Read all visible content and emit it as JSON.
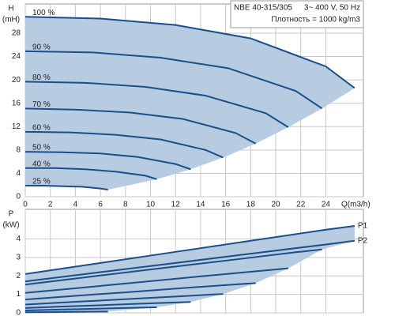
{
  "chart_data": [
    {
      "type": "line",
      "header": [
        "NBE 40-315/305",
        "3~ 400 V, 50 Hz",
        "Плотность = 1000 kg/m3"
      ],
      "y_label": [
        "H",
        "(mH)"
      ],
      "x_label": "Q(m3/h)",
      "xlim": [
        0,
        27
      ],
      "ylim": [
        0,
        33
      ],
      "xticks": [
        0,
        2,
        4,
        6,
        8,
        10,
        12,
        14,
        16,
        18,
        20,
        22,
        24
      ],
      "yticks": [
        0,
        4,
        8,
        12,
        16,
        20,
        24,
        28
      ],
      "grid": true,
      "color": "#1a4f8a",
      "shade": "#b7cbe1",
      "series": [
        {
          "name": "100 %",
          "x": [
            0,
            6,
            12,
            18,
            24,
            26.3
          ],
          "values": [
            30.8,
            30.5,
            29.4,
            27.1,
            22.3,
            18.6
          ]
        },
        {
          "name": "90 %",
          "x": [
            0,
            5.4,
            10.8,
            16.2,
            21.6,
            23.7
          ],
          "values": [
            24.9,
            24.7,
            23.8,
            22.0,
            18.1,
            15.1
          ]
        },
        {
          "name": "80 %",
          "x": [
            0,
            4.8,
            9.6,
            14.4,
            19.2,
            21
          ],
          "values": [
            19.7,
            19.5,
            18.8,
            17.3,
            14.3,
            11.9
          ]
        },
        {
          "name": "70 %",
          "x": [
            0,
            4.2,
            8.4,
            12.6,
            16.8,
            18.4
          ],
          "values": [
            15.1,
            14.9,
            14.4,
            13.3,
            10.9,
            9.1
          ]
        },
        {
          "name": "60 %",
          "x": [
            0,
            3.6,
            7.2,
            10.8,
            14.4,
            15.8
          ],
          "values": [
            11.1,
            11.0,
            10.6,
            9.8,
            8.0,
            6.7
          ]
        },
        {
          "name": "50 %",
          "x": [
            0,
            3,
            6,
            9,
            12,
            13.2
          ],
          "values": [
            7.7,
            7.6,
            7.4,
            6.8,
            5.6,
            4.7
          ]
        },
        {
          "name": "40 %",
          "x": [
            0,
            2.4,
            4.8,
            7.2,
            9.6,
            10.5
          ],
          "values": [
            4.9,
            4.9,
            4.7,
            4.3,
            3.6,
            3.0
          ]
        },
        {
          "name": "25 %",
          "x": [
            0,
            1.5,
            3,
            4.5,
            6,
            6.6
          ],
          "values": [
            1.9,
            1.9,
            1.8,
            1.7,
            1.4,
            1.2
          ]
        }
      ]
    },
    {
      "type": "line",
      "y_label": [
        "P",
        "(kW)"
      ],
      "xlim": [
        0,
        27
      ],
      "ylim": [
        0,
        5.6
      ],
      "xticks": [
        0,
        2,
        4,
        6,
        8,
        10,
        12,
        14,
        16,
        18,
        20,
        22,
        24
      ],
      "yticks": [
        0,
        1,
        2,
        3,
        4
      ],
      "grid": true,
      "color": "#1a4f8a",
      "shade": "#b7cbe1",
      "series": [
        {
          "name": "P1",
          "x": [
            0,
            6,
            12,
            18,
            24,
            26.3
          ],
          "values": [
            2.1,
            2.7,
            3.3,
            3.9,
            4.5,
            4.7
          ]
        },
        {
          "name": "P2",
          "x": [
            0,
            6,
            12,
            18,
            24,
            26.3
          ],
          "values": [
            1.7,
            2.2,
            2.7,
            3.2,
            3.7,
            3.9
          ]
        },
        {
          "x": [
            0,
            5.4,
            10.8,
            16.2,
            21.6,
            23.7
          ],
          "values": [
            1.53,
            1.97,
            2.41,
            2.84,
            3.28,
            3.43
          ]
        },
        {
          "x": [
            0,
            4.8,
            9.6,
            14.4,
            19.2,
            21
          ],
          "values": [
            1.08,
            1.38,
            1.69,
            2.0,
            2.3,
            2.41
          ]
        },
        {
          "x": [
            0,
            4.2,
            8.4,
            12.6,
            16.8,
            18.4
          ],
          "values": [
            0.72,
            0.93,
            1.13,
            1.34,
            1.54,
            1.61
          ]
        },
        {
          "x": [
            0,
            3.6,
            7.2,
            10.8,
            14.4,
            15.8
          ],
          "values": [
            0.45,
            0.58,
            0.71,
            0.84,
            0.97,
            1.02
          ]
        },
        {
          "x": [
            0,
            3,
            6,
            9,
            12,
            13.2
          ],
          "values": [
            0.26,
            0.34,
            0.41,
            0.49,
            0.56,
            0.59
          ]
        },
        {
          "x": [
            0,
            2.4,
            4.8,
            7.2,
            9.6,
            10.5
          ],
          "values": [
            0.13,
            0.17,
            0.21,
            0.25,
            0.29,
            0.3
          ]
        },
        {
          "x": [
            0,
            1.5,
            3,
            4.5,
            6,
            6.6
          ],
          "values": [
            0.03,
            0.04,
            0.05,
            0.06,
            0.07,
            0.07
          ]
        }
      ]
    }
  ]
}
